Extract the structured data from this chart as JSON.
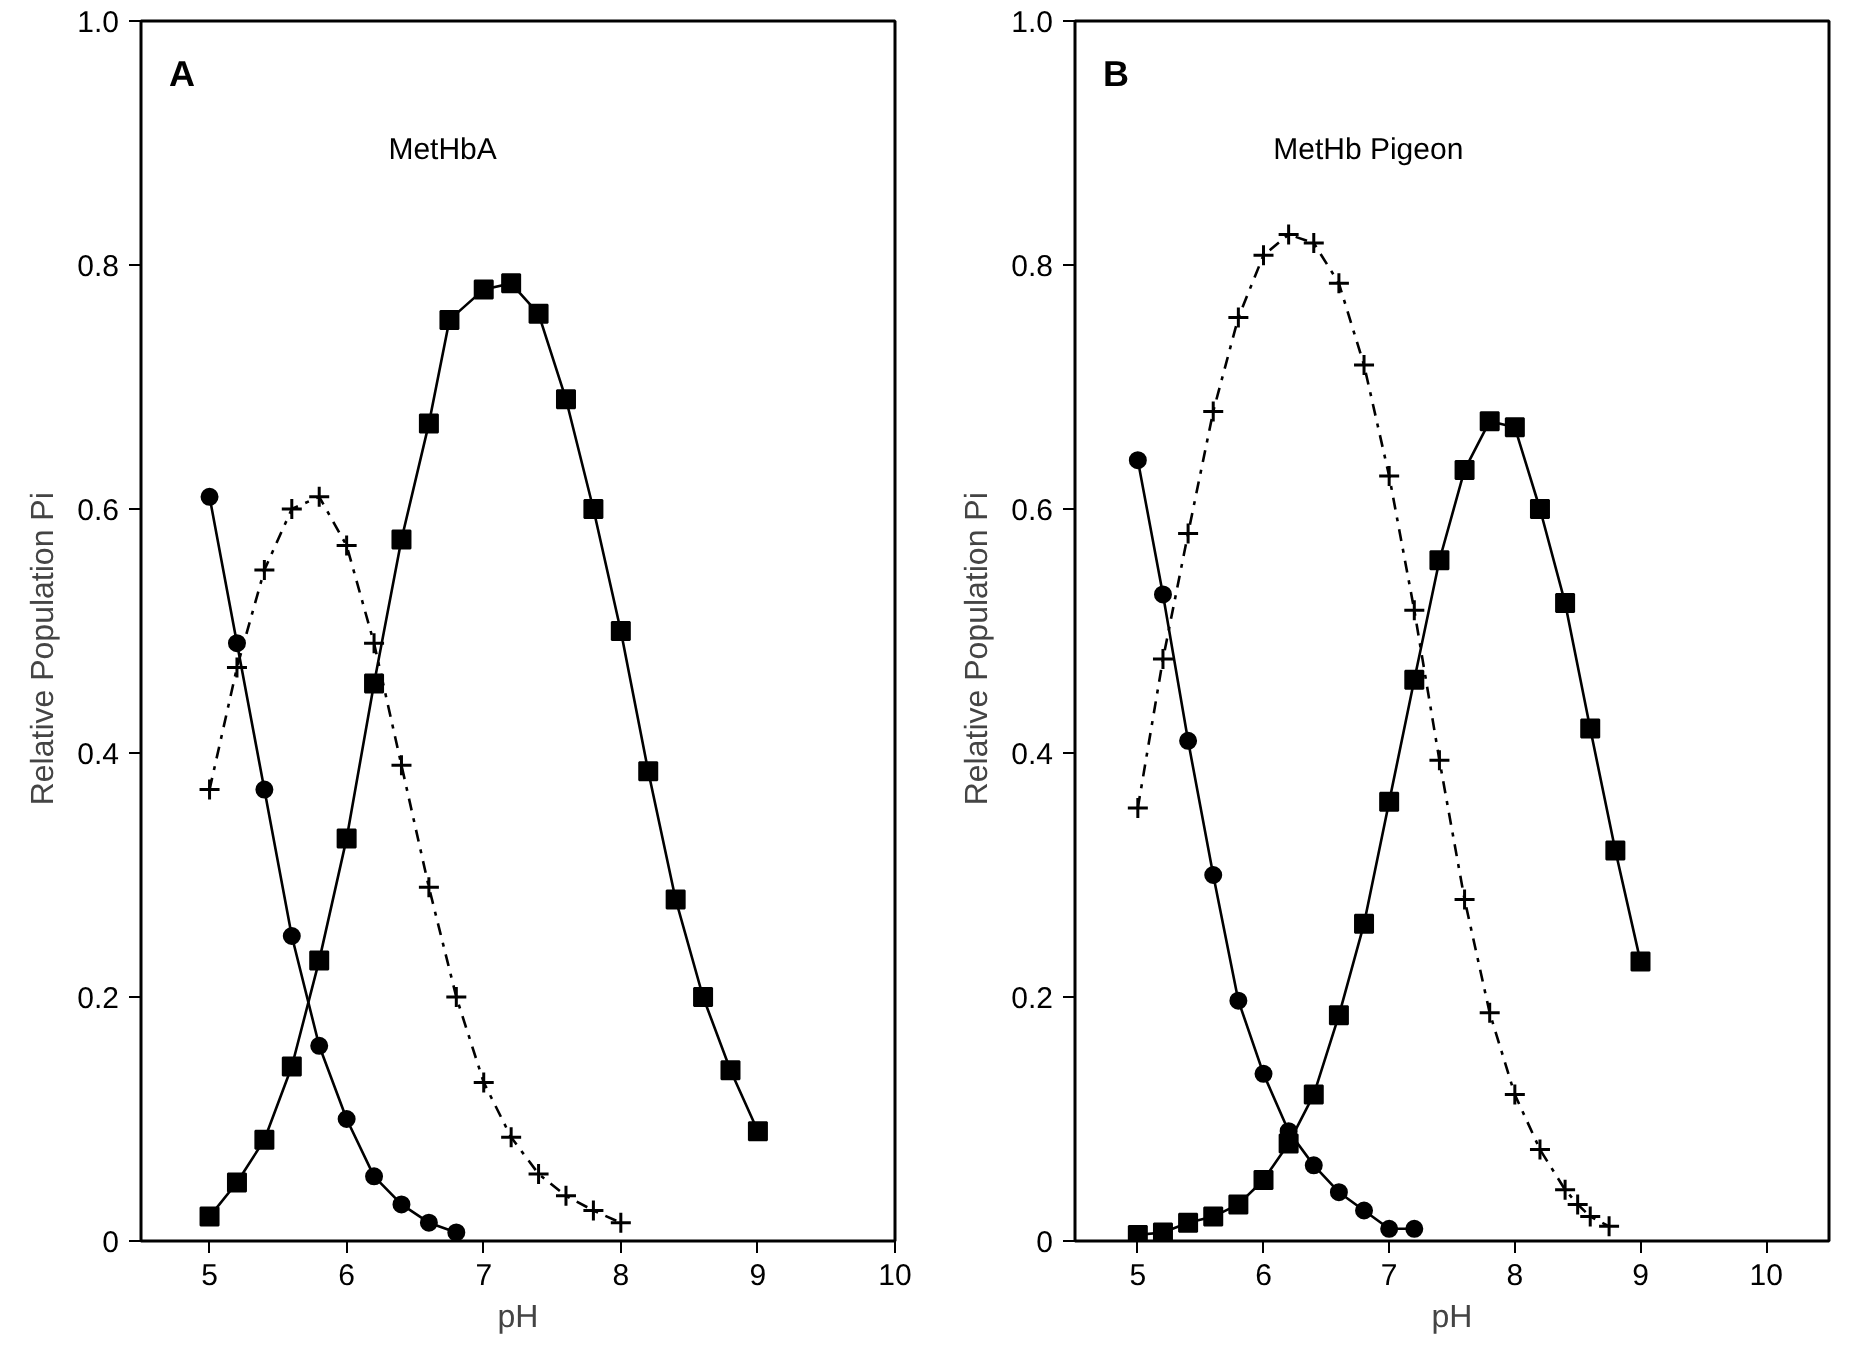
{
  "chart_data": [
    {
      "type": "line",
      "annotations": [
        "A",
        "MetHbA"
      ],
      "xlabel": "pH",
      "ylabel": "Relative   Population   Pi",
      "xlim": [
        4.5,
        10
      ],
      "ylim": [
        0,
        1.0
      ],
      "xticks": [
        5,
        6,
        7,
        8,
        9,
        10
      ],
      "yticks": [
        0,
        {
          "value": 0.2,
          "label": "0.2"
        },
        {
          "value": 0.4,
          "label": "0.4"
        },
        {
          "value": 0.6,
          "label": "0.6"
        },
        {
          "value": 0.8,
          "label": "0.8"
        },
        {
          "value": 1.0,
          "label": "1.0"
        }
      ],
      "grid": false,
      "series": [
        {
          "color": "#000000",
          "marker": "circle",
          "line_style": "solid",
          "x": [
            5.0,
            5.2,
            5.4,
            5.6,
            5.8,
            6.0,
            6.2,
            6.4,
            6.6,
            6.8
          ],
          "values": [
            0.61,
            0.49,
            0.37,
            0.25,
            0.16,
            0.1,
            0.053,
            0.03,
            0.015,
            0.007
          ]
        },
        {
          "color": "#000000",
          "marker": "cross",
          "line_style": "dashed",
          "x": [
            5.0,
            5.2,
            5.4,
            5.6,
            5.8,
            6.0,
            6.2,
            6.4,
            6.6,
            6.8,
            7.0,
            7.2,
            7.4,
            7.6,
            7.8,
            8.0
          ],
          "values": [
            0.37,
            0.47,
            0.55,
            0.6,
            0.61,
            0.57,
            0.49,
            0.39,
            0.29,
            0.2,
            0.13,
            0.085,
            0.055,
            0.037,
            0.025,
            0.015
          ]
        },
        {
          "color": "#000000",
          "marker": "square",
          "line_style": "solid",
          "x": [
            5.0,
            5.2,
            5.4,
            5.6,
            5.8,
            6.0,
            6.2,
            6.4,
            6.6,
            6.75,
            7.0,
            7.2,
            7.4,
            7.6,
            7.8,
            8.0,
            8.2,
            8.4,
            8.6,
            8.8,
            9.0
          ],
          "values": [
            0.02,
            0.048,
            0.083,
            0.143,
            0.23,
            0.33,
            0.457,
            0.575,
            0.67,
            0.755,
            0.78,
            0.785,
            0.76,
            0.69,
            0.6,
            0.5,
            0.385,
            0.28,
            0.2,
            0.14,
            0.09
          ]
        }
      ]
    },
    {
      "type": "line",
      "annotations": [
        "B",
        "MetHb   Pigeon"
      ],
      "xlabel": "pH",
      "ylabel": "Relative   Population   Pi",
      "xlim": [
        4.5,
        10.5
      ],
      "ylim": [
        0,
        1.0
      ],
      "xticks": [
        5,
        6,
        7,
        8,
        9,
        10
      ],
      "yticks": [
        0,
        {
          "value": 0.2,
          "label": "0.2"
        },
        {
          "value": 0.4,
          "label": "0.4"
        },
        {
          "value": 0.6,
          "label": "0.6"
        },
        {
          "value": 0.8,
          "label": "0.8"
        },
        {
          "value": 1.0,
          "label": "1.0"
        }
      ],
      "grid": false,
      "series": [
        {
          "color": "#000000",
          "marker": "circle",
          "line_style": "solid",
          "x": [
            5.0,
            5.2,
            5.4,
            5.6,
            5.8,
            6.0,
            6.2,
            6.4,
            6.6,
            6.8,
            7.0,
            7.2
          ],
          "values": [
            0.64,
            0.53,
            0.41,
            0.3,
            0.197,
            0.137,
            0.09,
            0.062,
            0.04,
            0.025,
            0.01,
            0.01
          ]
        },
        {
          "color": "#000000",
          "marker": "cross",
          "line_style": "dashed",
          "x": [
            5.0,
            5.2,
            5.4,
            5.6,
            5.8,
            6.0,
            6.2,
            6.4,
            6.6,
            6.8,
            7.0,
            7.2,
            7.4,
            7.6,
            7.8,
            8.0,
            8.2,
            8.4,
            8.5,
            8.6,
            8.75
          ],
          "values": [
            0.355,
            0.477,
            0.58,
            0.68,
            0.757,
            0.808,
            0.825,
            0.818,
            0.785,
            0.718,
            0.627,
            0.517,
            0.394,
            0.28,
            0.187,
            0.12,
            0.075,
            0.042,
            0.03,
            0.02,
            0.012
          ]
        },
        {
          "color": "#000000",
          "marker": "square",
          "line_style": "solid",
          "x": [
            5.0,
            5.2,
            5.4,
            5.6,
            5.8,
            6.0,
            6.2,
            6.4,
            6.6,
            6.8,
            7.0,
            7.2,
            7.4,
            7.6,
            7.8,
            8.0,
            8.2,
            8.4,
            8.6,
            8.8,
            9.0
          ],
          "values": [
            0.005,
            0.007,
            0.015,
            0.02,
            0.03,
            0.05,
            0.08,
            0.12,
            0.185,
            0.26,
            0.36,
            0.46,
            0.558,
            0.632,
            0.672,
            0.667,
            0.6,
            0.523,
            0.42,
            0.32,
            0.229
          ]
        }
      ]
    }
  ]
}
